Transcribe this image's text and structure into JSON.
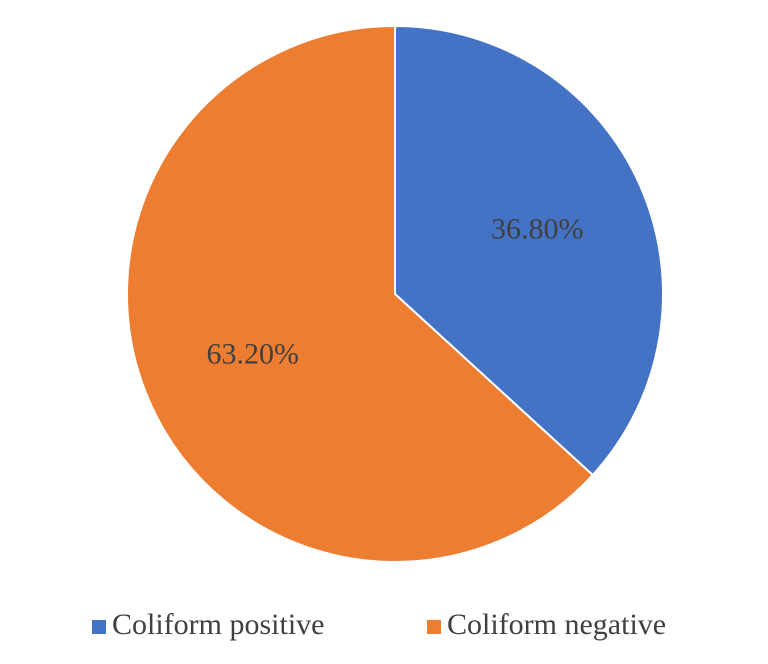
{
  "chart_data": {
    "type": "pie",
    "slices": [
      {
        "label": "Coliform positive",
        "value": 36.8,
        "display": "36.80%",
        "color": "#4472C4"
      },
      {
        "label": "Coliform negative",
        "value": 63.2,
        "display": "63.20%",
        "color": "#ED7D31"
      }
    ],
    "start_angle_deg": 0,
    "direction": "clockwise",
    "legend_position": "bottom",
    "slice_border_color": "#ffffff"
  }
}
